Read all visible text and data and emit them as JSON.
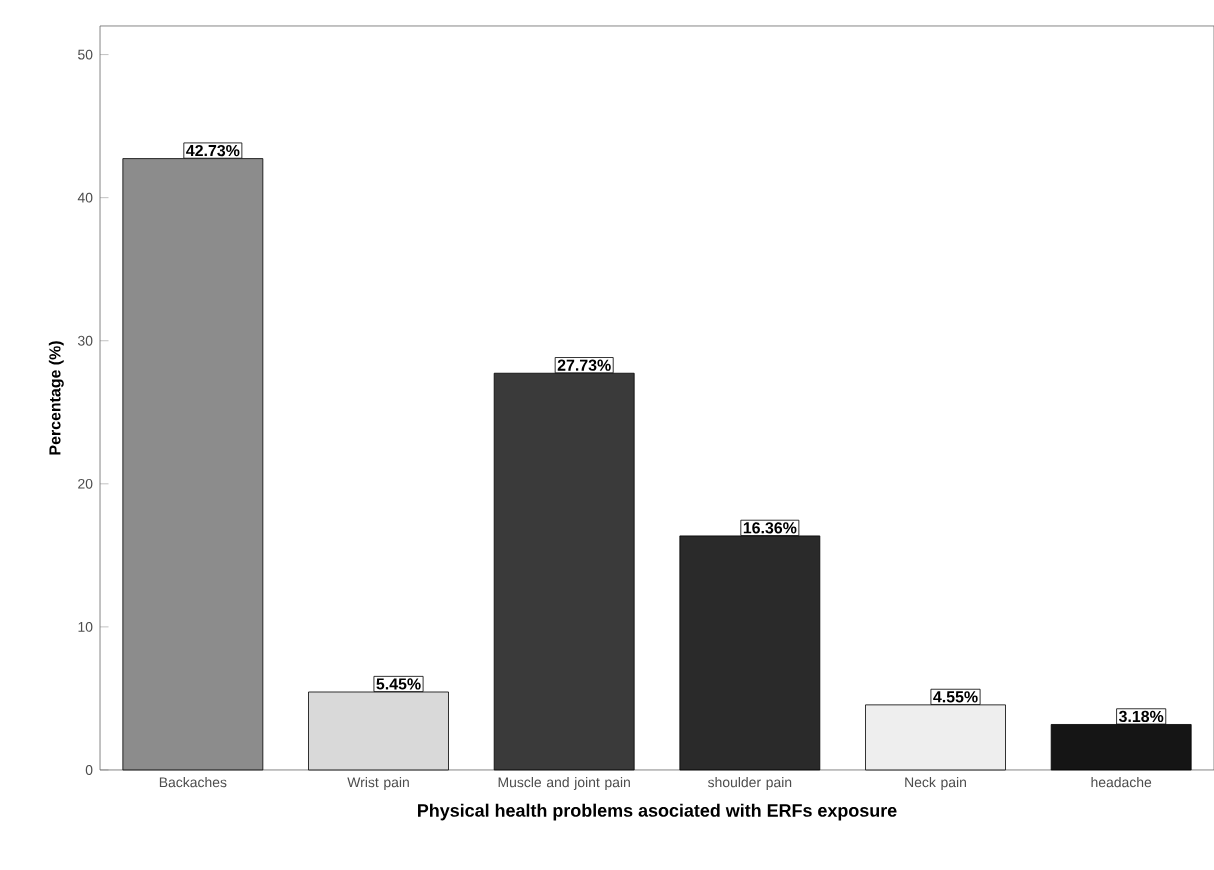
{
  "chart_data": {
    "type": "bar",
    "xlabel": "Physical health problems asociated with ERFs exposure",
    "ylabel": "Percentage (%)",
    "categories": [
      "Backaches",
      "Wrist pain",
      "Muscle and joint pain",
      "shoulder pain",
      "Neck pain",
      "headache"
    ],
    "values": [
      42.73,
      5.45,
      27.73,
      16.36,
      4.55,
      3.18
    ],
    "colors": [
      "#8c8c8c",
      "#d9d9d9",
      "#3a3a3a",
      "#2a2a2a",
      "#eeeeee",
      "#151515"
    ],
    "value_labels": [
      "42.73%",
      "5.45%",
      "27.73%",
      "16.36%",
      "4.55%",
      "3.18%"
    ],
    "ylim": [
      0,
      52
    ],
    "yticks": [
      0,
      10,
      20,
      30,
      40,
      50
    ]
  }
}
